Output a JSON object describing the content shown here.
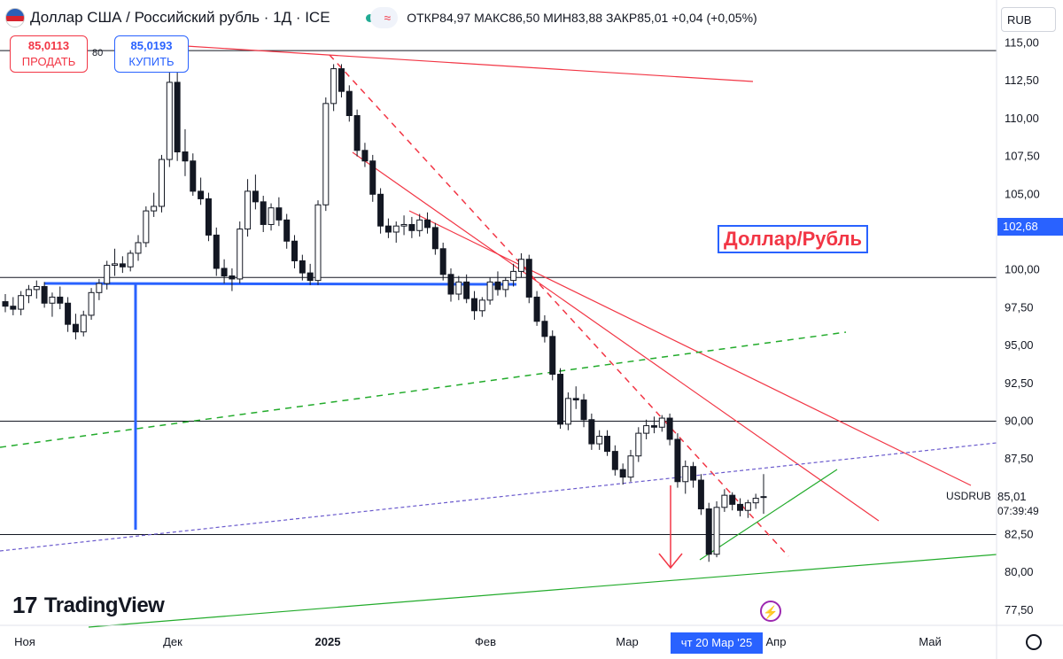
{
  "header": {
    "title": "Доллар США / Российский рубль · 1Д · ICE",
    "toggle_icon": "wave-icon",
    "open_label": "ОТКР",
    "open_value": "84,97",
    "high_label": "МАКС",
    "high_value": "86,50",
    "low_label": "МИН",
    "low_value": "83,88",
    "close_label": "ЗАКР",
    "close_value": "85,01",
    "change": "+0,04 (+0,05%)"
  },
  "trade": {
    "sell_price": "85,0113",
    "sell_label": "ПРОДАТЬ",
    "buy_price": "85,0193",
    "buy_label": "КУПИТЬ",
    "spread": "80"
  },
  "currency_button": "RUB",
  "annotation_label": "Доллар/Рубль",
  "symbol_label": "USDRUB",
  "current_price": "85,01",
  "countdown": "07:39:49",
  "crosshair_price": "102,68",
  "crosshair_date": "чт 20 Мар '25",
  "logo_text": "TradingView",
  "colors": {
    "up": "#ffffff",
    "down": "#131722",
    "red_line": "#f23645",
    "green_line": "#22ab2b",
    "blue_line": "#2962ff",
    "purple_dash": "#6a5acd"
  },
  "chart_data": {
    "type": "candlestick",
    "y_axis_ticks": [
      "115,00",
      "112,50",
      "110,00",
      "107,50",
      "105,00",
      "100,00",
      "97,50",
      "95,00",
      "92,50",
      "90,00",
      "87,50",
      "82,50",
      "80,00",
      "77,50"
    ],
    "x_axis_labels": [
      "Ноя",
      "Дек",
      "2025",
      "Фев",
      "Мар",
      "Апр",
      "Май"
    ],
    "ylim": [
      76.5,
      115.5
    ],
    "horizontal_levels": [
      114.5,
      99.5,
      90.0,
      82.5
    ],
    "candles": [
      [
        97.9,
        98.4,
        97.2,
        97.6
      ],
      [
        97.6,
        98.2,
        97.0,
        97.4
      ],
      [
        97.4,
        98.6,
        97.0,
        98.3
      ],
      [
        98.3,
        99.0,
        97.8,
        98.7
      ],
      [
        98.7,
        99.3,
        98.1,
        98.9
      ],
      [
        98.9,
        99.2,
        97.5,
        97.8
      ],
      [
        97.8,
        98.5,
        96.9,
        98.2
      ],
      [
        98.2,
        98.9,
        97.4,
        97.8
      ],
      [
        97.8,
        98.2,
        95.9,
        96.4
      ],
      [
        96.4,
        97.1,
        95.4,
        95.9
      ],
      [
        95.9,
        97.3,
        95.6,
        97.0
      ],
      [
        97.0,
        98.8,
        96.7,
        98.5
      ],
      [
        98.5,
        99.4,
        98.0,
        99.1
      ],
      [
        99.1,
        100.6,
        98.7,
        100.3
      ],
      [
        100.3,
        101.4,
        99.6,
        100.4
      ],
      [
        100.4,
        100.9,
        99.8,
        100.2
      ],
      [
        100.2,
        101.3,
        99.9,
        101.1
      ],
      [
        101.1,
        102.3,
        100.6,
        101.8
      ],
      [
        101.8,
        104.2,
        101.5,
        103.9
      ],
      [
        103.9,
        105.1,
        103.5,
        104.2
      ],
      [
        104.2,
        107.6,
        103.8,
        107.3
      ],
      [
        107.3,
        113.6,
        106.8,
        112.4
      ],
      [
        112.4,
        113.3,
        107.2,
        107.8
      ],
      [
        107.8,
        109.3,
        106.2,
        107.2
      ],
      [
        107.2,
        107.7,
        104.9,
        105.2
      ],
      [
        105.2,
        106.1,
        104.3,
        104.7
      ],
      [
        104.7,
        105.1,
        101.9,
        102.3
      ],
      [
        102.3,
        102.8,
        99.6,
        100.1
      ],
      [
        100.1,
        100.7,
        99.1,
        99.6
      ],
      [
        99.6,
        100.1,
        98.6,
        99.4
      ],
      [
        99.4,
        103.2,
        99.1,
        102.7
      ],
      [
        102.7,
        106.0,
        102.2,
        105.2
      ],
      [
        105.2,
        106.3,
        104.0,
        104.5
      ],
      [
        104.5,
        104.9,
        102.5,
        103.0
      ],
      [
        103.0,
        104.4,
        102.6,
        104.1
      ],
      [
        104.1,
        104.8,
        102.9,
        103.3
      ],
      [
        103.3,
        103.7,
        101.4,
        101.9
      ],
      [
        101.9,
        102.3,
        100.1,
        100.6
      ],
      [
        100.6,
        101.0,
        99.3,
        99.8
      ],
      [
        99.8,
        100.4,
        99.0,
        99.3
      ],
      [
        99.3,
        104.6,
        99.0,
        104.3
      ],
      [
        104.3,
        111.4,
        103.9,
        111.0
      ],
      [
        111.0,
        113.6,
        110.5,
        113.3
      ],
      [
        113.3,
        113.6,
        111.4,
        111.8
      ],
      [
        111.8,
        112.2,
        109.8,
        110.2
      ],
      [
        110.2,
        110.6,
        107.5,
        107.9
      ],
      [
        107.9,
        108.4,
        106.8,
        107.2
      ],
      [
        107.2,
        107.6,
        104.5,
        105.0
      ],
      [
        105.0,
        105.4,
        102.4,
        102.9
      ],
      [
        102.9,
        103.4,
        102.1,
        102.5
      ],
      [
        102.5,
        103.2,
        101.8,
        102.9
      ],
      [
        102.9,
        103.6,
        102.3,
        103.0
      ],
      [
        103.0,
        103.5,
        102.1,
        102.6
      ],
      [
        102.6,
        103.7,
        102.2,
        103.3
      ],
      [
        103.3,
        103.8,
        102.4,
        102.8
      ],
      [
        102.8,
        103.1,
        101.0,
        101.4
      ],
      [
        101.4,
        101.8,
        99.3,
        99.7
      ],
      [
        99.7,
        100.1,
        97.9,
        98.4
      ],
      [
        98.4,
        99.6,
        98.0,
        99.2
      ],
      [
        99.2,
        99.7,
        97.8,
        98.1
      ],
      [
        98.1,
        98.6,
        96.7,
        97.3
      ],
      [
        97.3,
        98.2,
        96.9,
        98.0
      ],
      [
        98.0,
        99.5,
        97.7,
        99.2
      ],
      [
        99.2,
        99.9,
        98.3,
        98.7
      ],
      [
        98.7,
        99.5,
        98.2,
        99.3
      ],
      [
        99.3,
        100.4,
        98.9,
        99.9
      ],
      [
        99.9,
        101.1,
        99.5,
        100.7
      ],
      [
        100.7,
        101.0,
        97.8,
        98.2
      ],
      [
        98.2,
        98.6,
        96.3,
        96.6
      ],
      [
        96.6,
        97.0,
        95.2,
        95.6
      ],
      [
        95.6,
        96.0,
        92.7,
        93.1
      ],
      [
        93.1,
        93.5,
        89.5,
        89.8
      ],
      [
        89.8,
        91.9,
        89.4,
        91.5
      ],
      [
        91.5,
        92.3,
        90.8,
        91.4
      ],
      [
        91.4,
        91.8,
        89.6,
        90.1
      ],
      [
        90.1,
        90.5,
        88.1,
        88.5
      ],
      [
        88.5,
        89.4,
        88.1,
        89.0
      ],
      [
        89.0,
        89.4,
        87.7,
        88.0
      ],
      [
        88.0,
        88.4,
        86.4,
        86.8
      ],
      [
        86.8,
        87.2,
        85.8,
        86.3
      ],
      [
        86.3,
        88.1,
        86.0,
        87.7
      ],
      [
        87.7,
        89.6,
        87.3,
        89.2
      ],
      [
        89.2,
        90.1,
        88.8,
        89.7
      ],
      [
        89.7,
        90.3,
        89.2,
        89.6
      ],
      [
        89.6,
        90.4,
        89.3,
        90.2
      ],
      [
        90.2,
        90.5,
        88.4,
        88.8
      ],
      [
        88.8,
        89.2,
        85.6,
        86.0
      ],
      [
        86.0,
        87.4,
        85.2,
        87.0
      ],
      [
        87.0,
        87.3,
        85.6,
        86.1
      ],
      [
        86.1,
        86.5,
        83.8,
        84.2
      ],
      [
        84.2,
        84.6,
        80.7,
        81.2
      ],
      [
        81.2,
        84.7,
        81.0,
        84.3
      ],
      [
        84.3,
        85.5,
        84.0,
        85.1
      ],
      [
        85.1,
        85.3,
        84.1,
        84.5
      ],
      [
        84.5,
        84.9,
        83.7,
        84.1
      ],
      [
        84.1,
        84.8,
        83.6,
        84.6
      ],
      [
        84.6,
        85.2,
        84.2,
        84.9
      ],
      [
        84.97,
        86.5,
        83.88,
        85.01
      ]
    ]
  }
}
